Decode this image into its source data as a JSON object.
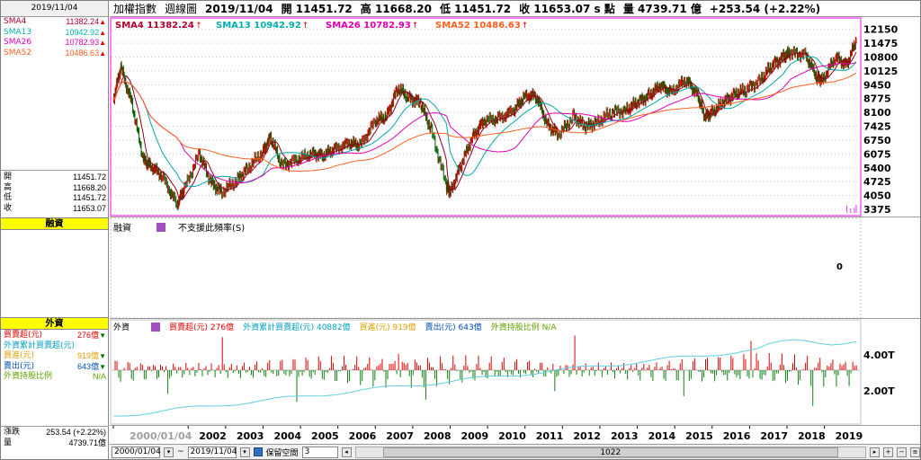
{
  "left": {
    "date": "2019/11/04",
    "sma": [
      {
        "label": "SMA4",
        "value": "11382.24",
        "color": "#b0002b"
      },
      {
        "label": "SMA13",
        "value": "10942.92",
        "color": "#00b0b0"
      },
      {
        "label": "SMA26",
        "value": "10782.93",
        "color": "#e000b0"
      },
      {
        "label": "SMA52",
        "value": "10486.63",
        "color": "#ff6020"
      }
    ],
    "ohlc": [
      {
        "label": "開",
        "value": "11451.72"
      },
      {
        "label": "高",
        "value": "11668.20"
      },
      {
        "label": "低",
        "value": "11451.72"
      },
      {
        "label": "收",
        "value": "11653.07"
      }
    ],
    "fin_title": "融資",
    "for_title": "外資",
    "foreign": [
      {
        "label": "買賣超(元)",
        "value": "276億",
        "color": "#e00000",
        "dir": "down"
      },
      {
        "label": "外資累計買賣超(元)",
        "value": "",
        "color": "#00a0c0",
        "dir": ""
      },
      {
        "label": "買進(元)",
        "value": "919億",
        "color": "#e0a000",
        "dir": "down"
      },
      {
        "label": "賣出(元)",
        "value": "643億",
        "color": "#0050b0",
        "dir": "down"
      },
      {
        "label": "外資持股比例",
        "value": "N/A",
        "color": "#60a000",
        "dir": ""
      }
    ],
    "change_label": "漲跌",
    "change_value": "253.54 (+2.22%)",
    "volume_label": "量",
    "volume_value": "4739.71億"
  },
  "header": {
    "name": "加權指數",
    "period": "週線圖",
    "date": "2019/11/04",
    "open": "開 11451.72",
    "high": "高 11668.20",
    "low": "低 11451.72",
    "close": "收 11653.07 s 點",
    "volume": "量 4739.71 億",
    "change": "+253.54 (+2.22%)"
  },
  "price_legend": [
    {
      "text": "SMA4 11382.24",
      "color": "#b0002b"
    },
    {
      "text": "SMA13 10942.92",
      "color": "#00b0b0"
    },
    {
      "text": "SMA26 10782.93",
      "color": "#e000b0"
    },
    {
      "text": "SMA52 10486.63",
      "color": "#ff6020"
    }
  ],
  "fin_legend": {
    "name": "融資",
    "note": "不支援此頻率(S)"
  },
  "fin_axis": "0",
  "for_legend": [
    {
      "text": "外資",
      "color": "#000000"
    },
    {
      "text": "買賣超(元) 276億",
      "color": "#e00000"
    },
    {
      "text": "外資累計買賣超(元) 40882億",
      "color": "#00a0c0"
    },
    {
      "text": "買進(元) 919億",
      "color": "#e0a000"
    },
    {
      "text": "賣出(元) 643億",
      "color": "#0050b0"
    },
    {
      "text": "外資持股比例 N/A",
      "color": "#60a000"
    }
  ],
  "for_axis": [
    "4.00T",
    "2.00T"
  ],
  "status": {
    "start_date": "2000/01/04",
    "end_date": "2019/11/04",
    "keep_space": "保留空間",
    "keep_value": "3",
    "bars": "1022"
  },
  "chart_data": {
    "type": "line",
    "title": "加權指數 週線圖",
    "x_labels": [
      "2000/01/04",
      "2002",
      "2003",
      "2004",
      "2005",
      "2006",
      "2007",
      "2008",
      "2009",
      "2010",
      "2011",
      "2012",
      "2013",
      "2014",
      "2015",
      "2016",
      "2017",
      "2018",
      "2019"
    ],
    "price_ylabels": [
      "12150",
      "11475",
      "10800",
      "10125",
      "9450",
      "8775",
      "8100",
      "7425",
      "6750",
      "6075",
      "5400",
      "4725",
      "4050",
      "3375"
    ],
    "ylim": [
      3200,
      12400
    ],
    "x": [
      2000.0,
      2000.2,
      2000.5,
      2000.8,
      2001.0,
      2001.3,
      2001.7,
      2001.9,
      2002.3,
      2002.6,
      2002.9,
      2003.3,
      2003.6,
      2004.0,
      2004.2,
      2004.5,
      2004.9,
      2005.3,
      2005.6,
      2005.9,
      2006.3,
      2006.6,
      2007.0,
      2007.3,
      2007.6,
      2007.9,
      2008.2,
      2008.5,
      2008.9,
      2009.0,
      2009.3,
      2009.6,
      2009.9,
      2010.3,
      2010.7,
      2010.99,
      2011.3,
      2011.6,
      2011.9,
      2012.3,
      2012.6,
      2012.9,
      2013.3,
      2013.7,
      2014.0,
      2014.3,
      2014.6,
      2014.9,
      2015.3,
      2015.6,
      2015.8,
      2016.0,
      2016.3,
      2016.6,
      2016.9,
      2017.3,
      2017.6,
      2017.9,
      2018.1,
      2018.5,
      2018.8,
      2018.95,
      2019.3,
      2019.6,
      2019.85
    ],
    "close": [
      8700,
      10300,
      8500,
      5800,
      5500,
      5000,
      3600,
      4400,
      6100,
      4700,
      4200,
      4800,
      5400,
      6200,
      6900,
      5500,
      5800,
      6100,
      6000,
      6300,
      6600,
      6500,
      7700,
      7900,
      9300,
      8800,
      8600,
      7200,
      4500,
      4200,
      5600,
      6900,
      7700,
      7800,
      8200,
      8900,
      8900,
      7500,
      7000,
      7900,
      7400,
      7600,
      8100,
      8200,
      8600,
      8900,
      9400,
      9100,
      9700,
      9000,
      7900,
      8100,
      8600,
      9000,
      9200,
      9700,
      10400,
      10800,
      11000,
      10900,
      9800,
      9700,
      10800,
      10400,
      11653
    ],
    "foreign_cumulative_range": [
      0,
      4.0882
    ],
    "foreign_net_last": 276
  }
}
